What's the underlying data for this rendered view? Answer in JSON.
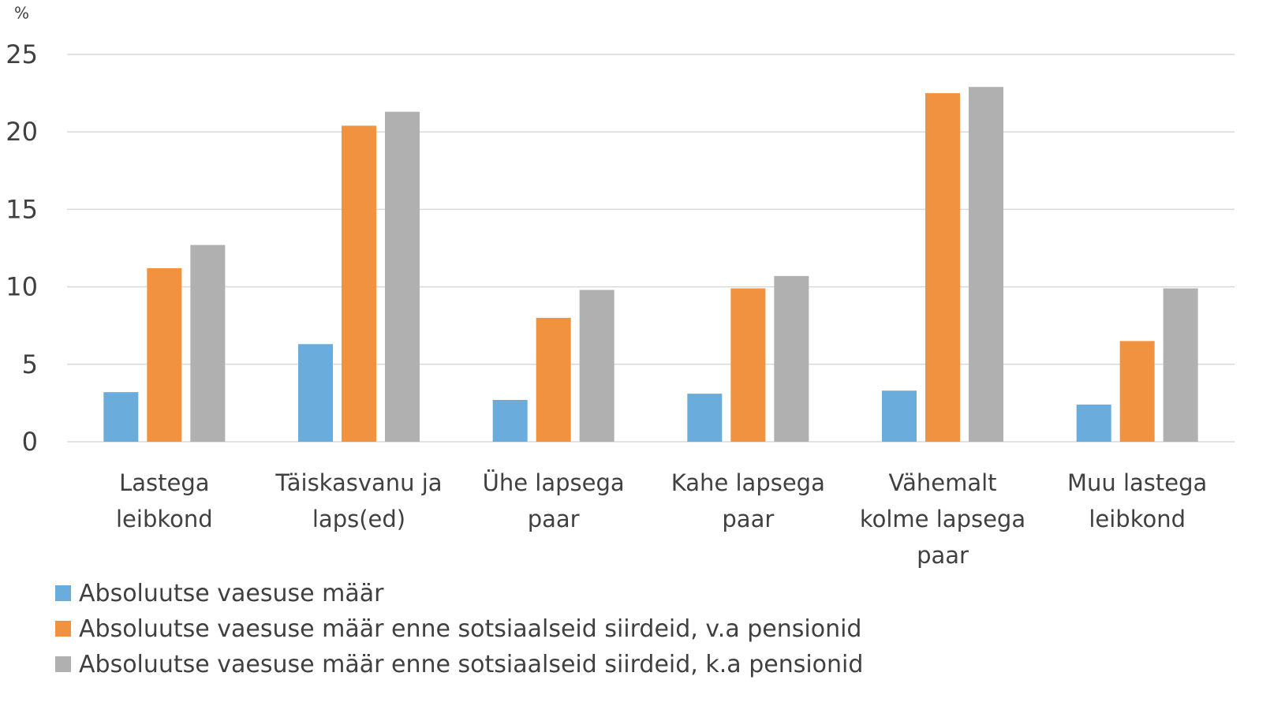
{
  "chart_data": {
    "type": "bar",
    "y_label": "%",
    "categories": [
      "Lastega\nleibkond",
      "Täiskasvanu ja\nlaps(ed)",
      "Ühe lapsega\npaar",
      "Kahe lapsega\npaar",
      "Vähemalt\nkolme lapsega\npaar",
      "Muu lastega\nleibkond"
    ],
    "series": [
      {
        "name": "Absoluutse vaesuse määr",
        "color": "#6aacdc",
        "values": [
          3.2,
          6.3,
          2.7,
          3.1,
          3.3,
          2.4
        ]
      },
      {
        "name": "Absoluutse vaesuse määr enne sotsiaalseid siirdeid, v.a pensionid",
        "color": "#f19241",
        "values": [
          11.2,
          20.4,
          8.0,
          9.9,
          22.5,
          6.5
        ]
      },
      {
        "name": "Absoluutse vaesuse määr enne sotsiaalseid siirdeid, k.a pensionid",
        "color": "#b0b0b0",
        "values": [
          12.7,
          21.3,
          9.8,
          10.7,
          22.9,
          9.9
        ]
      }
    ],
    "ylim": [
      0,
      25
    ],
    "yticks": [
      0,
      5,
      10,
      15,
      20,
      25
    ],
    "grid": true,
    "legend": "bottom"
  }
}
